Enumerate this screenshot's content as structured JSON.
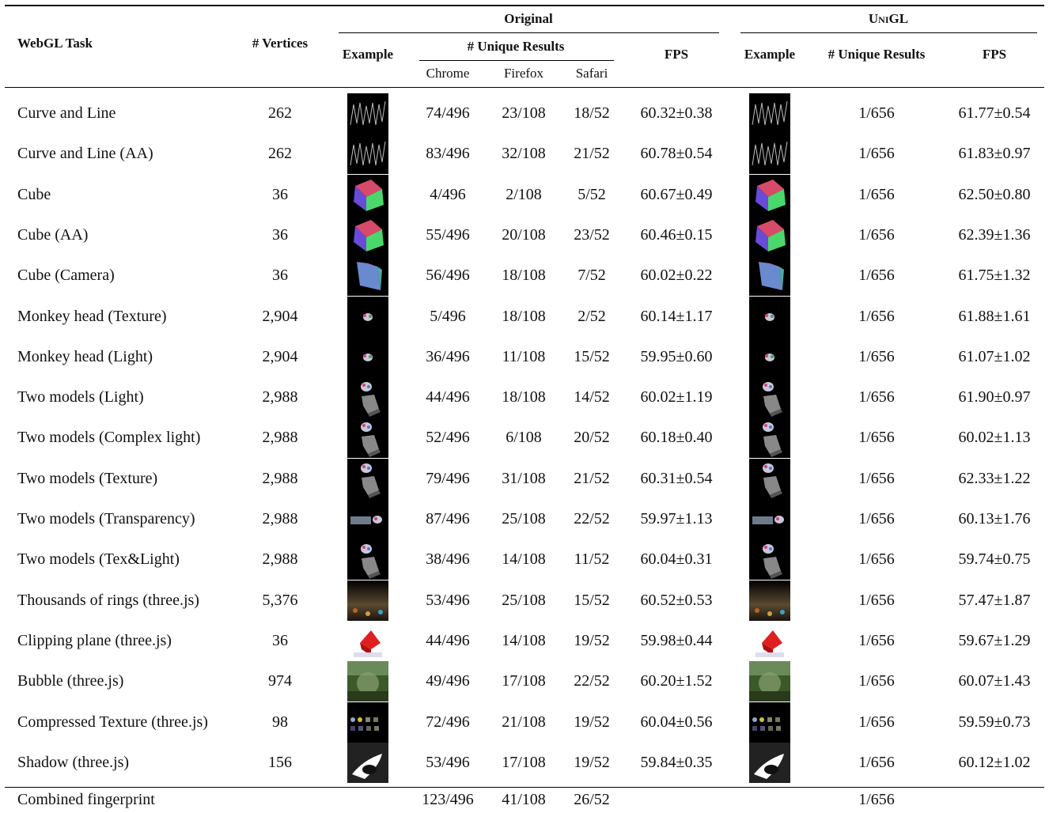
{
  "header": {
    "task": "WebGL Task",
    "vertices": "# Vertices",
    "original": "Original",
    "unigl": "UniGL",
    "example": "Example",
    "unique_results": "# Unique Results",
    "fps": "FPS",
    "chrome": "Chrome",
    "firefox": "Firefox",
    "safari": "Safari"
  },
  "rows": [
    {
      "task": "Curve and Line",
      "vertices": "262",
      "chrome": "74/496",
      "firefox": "23/108",
      "safari": "18/52",
      "fps": "60.32±0.38",
      "u_unique": "1/656",
      "u_fps": "61.77±0.54",
      "thumb": "curve-line"
    },
    {
      "task": "Curve and Line (AA)",
      "vertices": "262",
      "chrome": "83/496",
      "firefox": "32/108",
      "safari": "21/52",
      "fps": "60.78±0.54",
      "u_unique": "1/656",
      "u_fps": "61.83±0.97",
      "thumb": "curve-line"
    },
    {
      "task": "Cube",
      "vertices": "36",
      "chrome": "4/496",
      "firefox": "2/108",
      "safari": "5/52",
      "fps": "60.67±0.49",
      "u_unique": "1/656",
      "u_fps": "62.50±0.80",
      "thumb": "cube"
    },
    {
      "task": "Cube (AA)",
      "vertices": "36",
      "chrome": "55/496",
      "firefox": "20/108",
      "safari": "23/52",
      "fps": "60.46±0.15",
      "u_unique": "1/656",
      "u_fps": "62.39±1.36",
      "thumb": "cube"
    },
    {
      "task": "Cube (Camera)",
      "vertices": "36",
      "chrome": "56/496",
      "firefox": "18/108",
      "safari": "7/52",
      "fps": "60.02±0.22",
      "u_unique": "1/656",
      "u_fps": "61.75±1.32",
      "thumb": "cube-camera"
    },
    {
      "task": "Monkey head (Texture)",
      "vertices": "2,904",
      "chrome": "5/496",
      "firefox": "18/108",
      "safari": "2/52",
      "fps": "60.14±1.17",
      "u_unique": "1/656",
      "u_fps": "61.88±1.61",
      "thumb": "monkey"
    },
    {
      "task": "Monkey head (Light)",
      "vertices": "2,904",
      "chrome": "36/496",
      "firefox": "11/108",
      "safari": "15/52",
      "fps": "59.95±0.60",
      "u_unique": "1/656",
      "u_fps": "61.07±1.02",
      "thumb": "monkey"
    },
    {
      "task": "Two models (Light)",
      "vertices": "2,988",
      "chrome": "44/496",
      "firefox": "18/108",
      "safari": "14/52",
      "fps": "60.02±1.19",
      "u_unique": "1/656",
      "u_fps": "61.90±0.97",
      "thumb": "two-models"
    },
    {
      "task": "Two models (Complex light)",
      "vertices": "2,988",
      "chrome": "52/496",
      "firefox": "6/108",
      "safari": "20/52",
      "fps": "60.18±0.40",
      "u_unique": "1/656",
      "u_fps": "60.02±1.13",
      "thumb": "two-models"
    },
    {
      "task": "Two models (Texture)",
      "vertices": "2,988",
      "chrome": "79/496",
      "firefox": "31/108",
      "safari": "21/52",
      "fps": "60.31±0.54",
      "u_unique": "1/656",
      "u_fps": "62.33±1.22",
      "thumb": "two-models"
    },
    {
      "task": "Two models (Transparency)",
      "vertices": "2,988",
      "chrome": "87/496",
      "firefox": "25/108",
      "safari": "22/52",
      "fps": "59.97±1.13",
      "u_unique": "1/656",
      "u_fps": "60.13±1.76",
      "thumb": "transparency"
    },
    {
      "task": "Two models (Tex&Light)",
      "vertices": "2,988",
      "chrome": "38/496",
      "firefox": "14/108",
      "safari": "11/52",
      "fps": "60.04±0.31",
      "u_unique": "1/656",
      "u_fps": "59.74±0.75",
      "thumb": "two-models"
    },
    {
      "task": "Thousands of rings (three.js)",
      "vertices": "5,376",
      "chrome": "53/496",
      "firefox": "25/108",
      "safari": "15/52",
      "fps": "60.52±0.53",
      "u_unique": "1/656",
      "u_fps": "57.47±1.87",
      "thumb": "rings"
    },
    {
      "task": "Clipping plane (three.js)",
      "vertices": "36",
      "chrome": "44/496",
      "firefox": "14/108",
      "safari": "19/52",
      "fps": "59.98±0.44",
      "u_unique": "1/656",
      "u_fps": "59.67±1.29",
      "thumb": "clipping"
    },
    {
      "task": "Bubble (three.js)",
      "vertices": "974",
      "chrome": "49/496",
      "firefox": "17/108",
      "safari": "22/52",
      "fps": "60.20±1.52",
      "u_unique": "1/656",
      "u_fps": "60.07±1.43",
      "thumb": "bubble"
    },
    {
      "task": "Compressed Texture (three.js)",
      "vertices": "98",
      "chrome": "72/496",
      "firefox": "21/108",
      "safari": "19/52",
      "fps": "60.04±0.56",
      "u_unique": "1/656",
      "u_fps": "59.59±0.73",
      "thumb": "compressed"
    },
    {
      "task": "Shadow (three.js)",
      "vertices": "156",
      "chrome": "53/496",
      "firefox": "17/108",
      "safari": "19/52",
      "fps": "59.84±0.35",
      "u_unique": "1/656",
      "u_fps": "60.12±1.02",
      "thumb": "shadow"
    }
  ],
  "combined": {
    "task": "Combined fingerprint",
    "chrome": "123/496",
    "firefox": "41/108",
    "safari": "26/52",
    "u_unique": "1/656"
  }
}
